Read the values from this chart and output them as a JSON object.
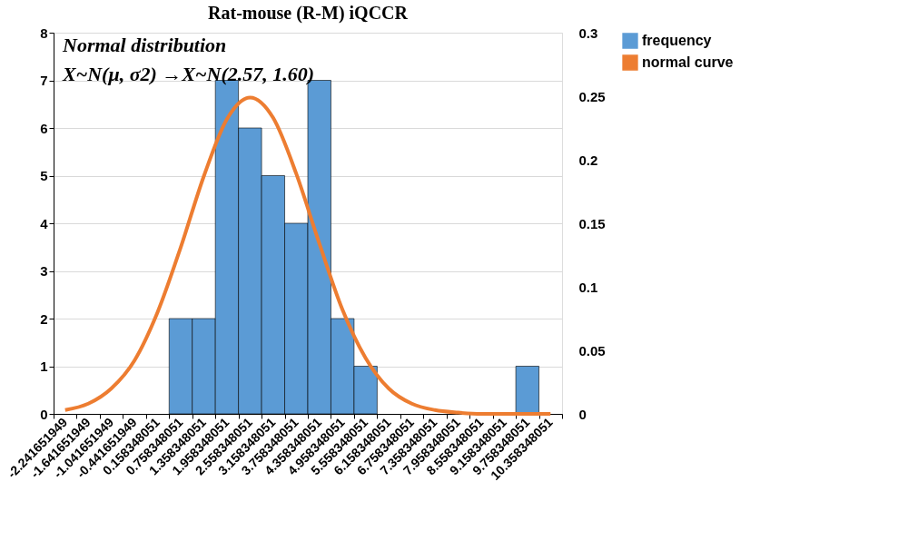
{
  "chart_data": {
    "type": "bar",
    "title": "Rat-mouse (R-M) iQCCR",
    "annotations": [
      "Normal distribution",
      "X~N(μ, σ2) →X~N(2.57, 1.60)"
    ],
    "categories": [
      "-2.241651949",
      "-1.641651949",
      "-1.041651949",
      "-0.441651949",
      "0.158348051",
      "0.758348051",
      "1.358348051",
      "1.958348051",
      "2.558348051",
      "3.158348051",
      "3.758348051",
      "4.358348051",
      "4.958348051",
      "5.558348051",
      "6.158348051",
      "6.758348051",
      "7.358348051",
      "7.958348051",
      "8.558348051",
      "9.158348051",
      "9.758348051",
      "10.358348051"
    ],
    "series": [
      {
        "name": "frequency",
        "color": "#5b9bd5",
        "values": [
          0,
          0,
          0,
          0,
          0,
          2,
          2,
          7,
          6,
          5,
          4,
          7,
          2,
          1,
          0,
          0,
          0,
          0,
          0,
          0,
          1,
          0
        ]
      },
      {
        "name": "normal curve",
        "type": "line",
        "axis": "y2",
        "color": "#ed7d31",
        "values": [
          0.003,
          0.008,
          0.02,
          0.042,
          0.08,
          0.131,
          0.187,
          0.232,
          0.249,
          0.233,
          0.189,
          0.134,
          0.082,
          0.044,
          0.02,
          0.008,
          0.003,
          0.001,
          0.0,
          0.0,
          0.0,
          0.0
        ]
      }
    ],
    "ylim": [
      0,
      8
    ],
    "yticks": [
      0,
      1,
      2,
      3,
      4,
      5,
      6,
      7,
      8
    ],
    "y2lim": [
      0,
      0.3
    ],
    "y2ticks": [
      0,
      0.05,
      0.1,
      0.15,
      0.2,
      0.25,
      0.3
    ],
    "grid": "y",
    "legend": "right",
    "marker": "none",
    "line_style": "solid"
  }
}
